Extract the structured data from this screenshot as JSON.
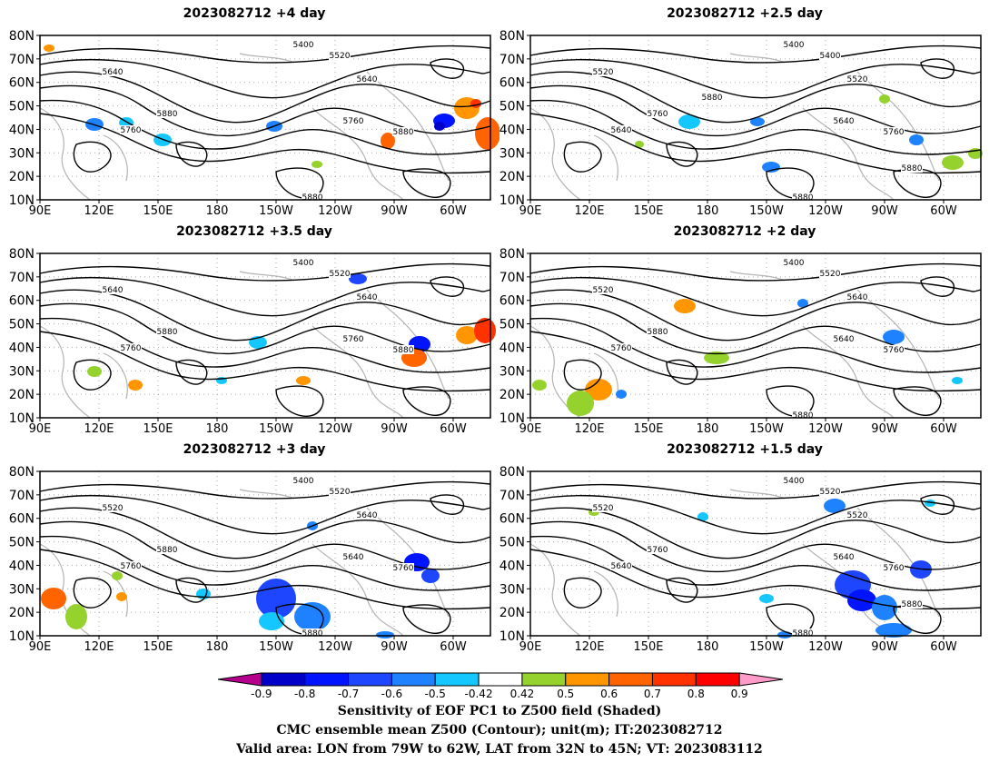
{
  "panels": [
    {
      "id": "p1",
      "title": "2023082712  +4 day",
      "labels": [
        "5400",
        "5520",
        "5640",
        "5640",
        "5760",
        "5760",
        "5880",
        "5880",
        "5880"
      ]
    },
    {
      "id": "p2",
      "title": "2023082712  +2.5 day",
      "labels": [
        "5400",
        "5400",
        "5520",
        "5520",
        "5640",
        "5640",
        "5760",
        "5760",
        "5880",
        "5880",
        "5880"
      ]
    },
    {
      "id": "p3",
      "title": "2023082712  +3.5 day",
      "labels": [
        "5400",
        "5520",
        "5640",
        "5640",
        "5760",
        "5760",
        "5880",
        "5880"
      ]
    },
    {
      "id": "p4",
      "title": "2023082712  +2 day",
      "labels": [
        "5400",
        "5520",
        "5520",
        "5640",
        "5640",
        "5760",
        "5760",
        "5880",
        "5880"
      ]
    },
    {
      "id": "p5",
      "title": "2023082712  +3 day",
      "labels": [
        "5400",
        "5520",
        "5520",
        "5640",
        "5640",
        "5760",
        "5760",
        "5880",
        "5880"
      ]
    },
    {
      "id": "p6",
      "title": "2023082712  +1.5 day",
      "labels": [
        "5400",
        "5520",
        "5520",
        "5520",
        "5640",
        "5640",
        "5760",
        "5760",
        "5880",
        "5880"
      ]
    }
  ],
  "axes": {
    "lat_labels": [
      "80N",
      "70N",
      "60N",
      "50N",
      "40N",
      "30N",
      "20N",
      "10N"
    ],
    "lon_labels": [
      "90E",
      "120E",
      "150E",
      "180",
      "150W",
      "120W",
      "90W",
      "60W"
    ]
  },
  "colorbar": {
    "colors": [
      "#b4008c",
      "#0000c8",
      "#0014ff",
      "#1e46ff",
      "#1e82ff",
      "#14c8ff",
      "#ffffff",
      "#96d22d",
      "#ff9600",
      "#ff6400",
      "#ff3200",
      "#ff0000",
      "#ff9bc8"
    ],
    "ticks": [
      "-0.9",
      "-0.8",
      "-0.7",
      "-0.6",
      "-0.5",
      "-0.42",
      "0.42",
      "0.5",
      "0.6",
      "0.7",
      "0.8",
      "0.9"
    ]
  },
  "footer": {
    "line1": "Sensitivity of EOF PC1 to Z500 field (Shaded)",
    "line2": "CMC ensemble mean Z500 (Contour); unit(m); IT:2023082712",
    "line3": "Valid area: LON from 79W to 62W, LAT from 32N to 45N; VT: 2023083112"
  }
}
